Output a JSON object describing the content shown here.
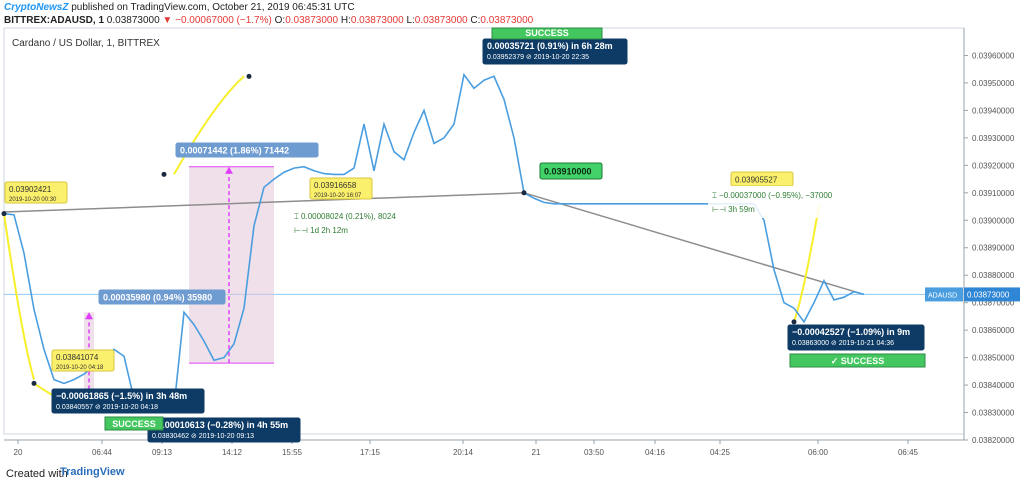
{
  "header": {
    "brand": "CryptoNewsZ",
    "published": "published on TradingView.com, October 21, 2019 06:45:31 UTC",
    "symbol": "BITTREX:ADAUSD, 1",
    "last": "0.03873000",
    "change": "▼ −0.00067000 (−1.7%)",
    "o_label": "O:",
    "o": "0.03873000",
    "h_label": "H:",
    "h": "0.03873000",
    "l_label": "L:",
    "l": "0.03873000",
    "c_label": "C:",
    "c": "0.03873000"
  },
  "footer": {
    "created_with": "Created with",
    "logo_text": "TradingView"
  },
  "chart_data": {
    "type": "line",
    "title": "Cardano / US Dollar, 1, BITTREX",
    "ylim": [
      0.0382,
      0.0397
    ],
    "y_ticks": [
      "0.03820000",
      "0.03830000",
      "0.03840000",
      "0.03850000",
      "0.03860000",
      "0.03870000",
      "0.03880000",
      "0.03890000",
      "0.03900000",
      "0.03910000",
      "0.03920000",
      "0.03930000",
      "0.03940000",
      "0.03950000",
      "0.03960000"
    ],
    "x_ticks": [
      "20",
      "06:44",
      "09:13",
      "14:12",
      "15:55",
      "17:15",
      "20:14",
      "21",
      "03:50",
      "04:16",
      "04:25",
      "06:00",
      "06:45"
    ],
    "series": [
      {
        "x": [
          0,
          2,
          4,
          6,
          8,
          10,
          12,
          14,
          16,
          18,
          20,
          22,
          24,
          26,
          28,
          30,
          32,
          34,
          36,
          38,
          40,
          42,
          44,
          46,
          48,
          50,
          52,
          54,
          56,
          58,
          60,
          62,
          64,
          66,
          68,
          70,
          72,
          74,
          76,
          78,
          80,
          82,
          84,
          86,
          88,
          90,
          92,
          94,
          96,
          98,
          100,
          102,
          104,
          106,
          108,
          110,
          112,
          114,
          116,
          118,
          120,
          122,
          124,
          126,
          128,
          130,
          132,
          134,
          136,
          138,
          140,
          142,
          144,
          146,
          148,
          150,
          152,
          154,
          156,
          158,
          160,
          162,
          164,
          166,
          168,
          170,
          172
        ],
        "values": [
          0.039024,
          0.03902,
          0.03888,
          0.038675,
          0.03853,
          0.03842,
          0.038406,
          0.03842,
          0.03844,
          0.03847,
          0.0385,
          0.03853,
          0.038505,
          0.03835,
          0.03833,
          0.03831,
          0.038308,
          0.03832,
          0.038665,
          0.03862,
          0.03856,
          0.03849,
          0.0385,
          0.03855,
          0.03868,
          0.03898,
          0.03912,
          0.03915,
          0.039175,
          0.03919,
          0.039195,
          0.03918,
          0.03917,
          0.039167,
          0.039167,
          0.03919,
          0.03935,
          0.03918,
          0.03935,
          0.03925,
          0.03922,
          0.03932,
          0.0394,
          0.03928,
          0.0393,
          0.03935,
          0.03953,
          0.03948,
          0.03951,
          0.039524,
          0.03944,
          0.0393,
          0.0391,
          0.03908,
          0.039065,
          0.03906,
          0.03906,
          0.03906,
          0.03906,
          0.03906,
          0.03906,
          0.03906,
          0.03906,
          0.03906,
          0.03906,
          0.03906,
          0.03906,
          0.03906,
          0.03906,
          0.03906,
          0.03906,
          0.03906,
          0.03906,
          0.03906,
          0.03906,
          0.03906,
          0.039,
          0.03882,
          0.0387,
          0.03868,
          0.03863,
          0.0387,
          0.03878,
          0.03871,
          0.03872,
          0.03874,
          0.03873
        ]
      }
    ],
    "trendlines": [
      {
        "x": [
          0,
          104
        ],
        "values": [
          0.03903,
          0.0391
        ]
      },
      {
        "x": [
          104,
          172
        ],
        "values": [
          0.0391,
          0.03873
        ]
      }
    ],
    "highlights": [
      {
        "x": [
          37,
          54
        ],
        "values": [
          0.03848,
          0.039195
        ]
      }
    ],
    "annotations": [
      {
        "id": "a1",
        "lines": [
          "0.03902421",
          "2019-10-20  00:30"
        ],
        "style": "yellow"
      },
      {
        "id": "a2",
        "lines": [
          "0.03841074",
          "2019-10-20  04:18"
        ],
        "style": "yellow"
      },
      {
        "id": "a3",
        "lines": [
          "−0.00061865 (−1.5%) in 3h 48m",
          "0.03840557 ⊘  2019-10-20  04:18"
        ],
        "style": "navy"
      },
      {
        "id": "a4",
        "lines": [
          "−0.00010613 (−0.28%) in 4h 55m",
          "0.03830462 ⊘  2019-10-20  09:13"
        ],
        "style": "navy"
      },
      {
        "id": "a5",
        "lines": [
          "0.00035980 (0.94%)  35980"
        ],
        "style": "blue"
      },
      {
        "id": "a6",
        "lines": [
          "0.00071442 (1.86%)  71442"
        ],
        "style": "blue"
      },
      {
        "id": "a7",
        "lines": [
          "0.03916658",
          "2019-10-20  16:07"
        ],
        "style": "yellow"
      },
      {
        "id": "a8",
        "lines": [
          "0.00035721 (0.91%) in 6h 28m",
          "0.03952379 ⊘  2019-10-20  22:35"
        ],
        "style": "navy"
      },
      {
        "id": "a9",
        "lines": [
          "0.03910000"
        ],
        "style": "green"
      },
      {
        "id": "a10",
        "lines": [
          "0.03905527"
        ],
        "style": "yellow"
      },
      {
        "id": "a11",
        "lines": [
          "−0.00042527 (−1.09%) in 9m",
          "0.03863000 ⊘  2019-10-21  04:36"
        ],
        "style": "navy"
      }
    ],
    "measures": [
      {
        "lines": [
          "0.00008024 (0.21%),  8024",
          "1d 2h 12m"
        ]
      },
      {
        "lines": [
          "−0.00037000 (−0.95%),  −37000",
          "3h 59m"
        ]
      }
    ],
    "success_labels": [
      "SUCCESS",
      "SUCCESS",
      "✓  SUCCESS"
    ],
    "price_tag": {
      "symbol": "ADAUSD",
      "value": "0.03873000"
    }
  }
}
